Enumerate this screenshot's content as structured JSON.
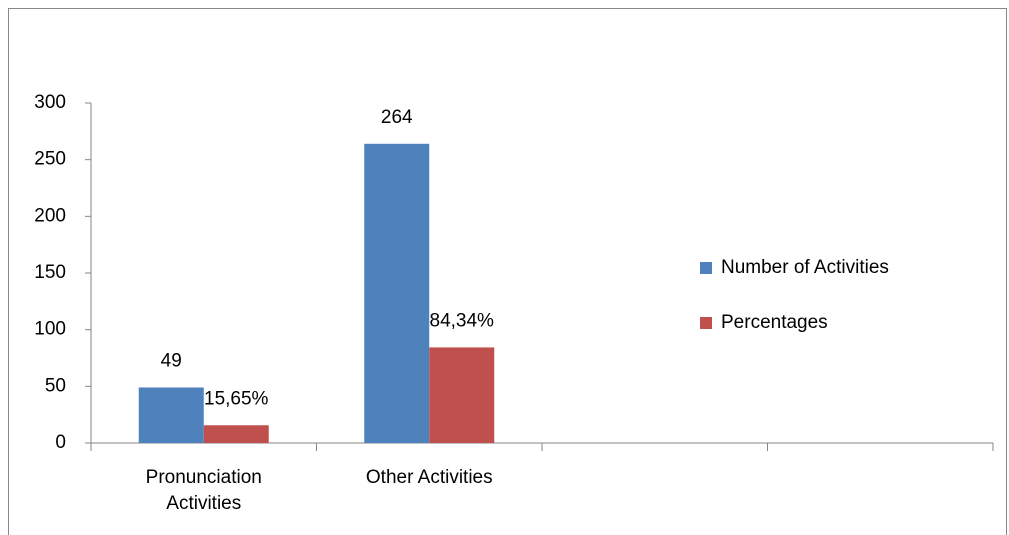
{
  "chart_data": {
    "type": "bar",
    "categories": [
      "Pronunciation Activities",
      "Other Activities",
      null,
      null
    ],
    "series": [
      {
        "name": "Number of Activities",
        "color": "#4f81bd",
        "values": [
          49,
          264,
          null,
          null
        ]
      },
      {
        "name": "Percentages",
        "color": "#c0504d",
        "values": [
          15.65,
          84.34,
          null,
          null
        ],
        "value_labels": [
          "15,65%",
          "84,34%",
          null,
          null
        ]
      }
    ],
    "ylim": [
      0,
      300
    ],
    "yticks": [
      0,
      50,
      100,
      150,
      200,
      250,
      300
    ],
    "grid": false,
    "legend": "right"
  }
}
